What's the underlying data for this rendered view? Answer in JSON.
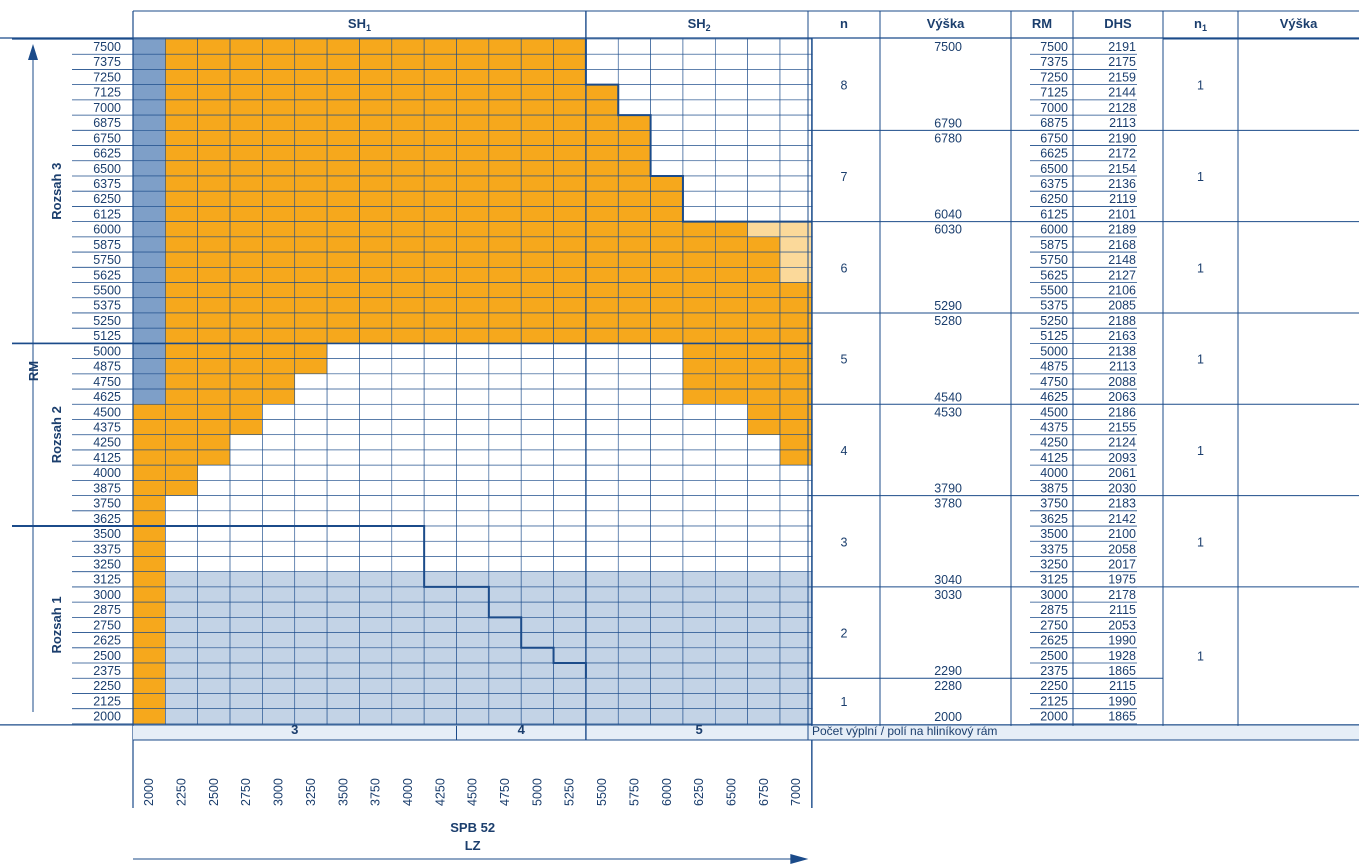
{
  "colors": {
    "orange": "#f6a81c",
    "light_orange": "#fbd99a",
    "blue": "#7e9fc8",
    "light_blue": "#c3d3e6",
    "line": "#1b4b8a",
    "grid": "#1b4b8a",
    "band": "#e6eef7"
  },
  "header": {
    "sh1_main": "SH",
    "sh1_sub": "1",
    "sh2_main": "SH",
    "sh2_sub": "2",
    "n": "n",
    "vyska": "Výška",
    "rm": "RM",
    "dhs": "DHS",
    "n1_main": "n",
    "n1_sub": "1",
    "vyska2": "Výška"
  },
  "axis": {
    "y_title": "RM",
    "x_title": "LZ",
    "x_subtitle": "SPB 52",
    "range_labels": [
      "Rozsah 3",
      "Rozsah 2",
      "Rozsah 1"
    ]
  },
  "footer": {
    "panel_counts": [
      "3",
      "4",
      "5"
    ],
    "note": "Počet výplní / polí na hliníkový rám"
  },
  "chart_data": {
    "type": "heatmap",
    "x": [
      2000,
      2250,
      2500,
      2750,
      3000,
      3250,
      3500,
      3750,
      4000,
      4250,
      4500,
      4750,
      5000,
      5250,
      5500,
      5750,
      6000,
      6250,
      6500,
      6750,
      7000
    ],
    "y": [
      7500,
      7375,
      7250,
      7125,
      7000,
      6875,
      6750,
      6625,
      6500,
      6375,
      6250,
      6125,
      6000,
      5875,
      5750,
      5625,
      5500,
      5375,
      5250,
      5125,
      5000,
      4875,
      4750,
      4625,
      4500,
      4375,
      4250,
      4125,
      4000,
      3875,
      3750,
      3625,
      3500,
      3375,
      3250,
      3125,
      3000,
      2875,
      2750,
      2625,
      2500,
      2375,
      2250,
      2125,
      2000
    ],
    "cell_fill_codes": [
      "B=blue",
      "O=orange",
      "L=light orange",
      "S=light blue",
      "W=white"
    ],
    "cells": [
      "BOOOOOOOOOOOOOWWWWWWW",
      "BOOOOOOOOOOOOOWWWWWWW",
      "BOOOOOOOOOOOOOWWWWWWW",
      "BOOOOOOOOOOOOOOWWWWWW",
      "BOOOOOOOOOOOOOOWWWWWW",
      "BOOOOOOOOOOOOOOOWWWWW",
      "BOOOOOOOOOOOOOOOWWWWW",
      "BOOOOOOOOOOOOOOOWWWWW",
      "BOOOOOOOOOOOOOOOWWWWW",
      "BOOOOOOOOOOOOOOOOWWWW",
      "BOOOOOOOOOOOOOOOOWWWW",
      "BOOOOOOOOOOOOOOOOWWWW",
      "BOOOOOOOOOOOOOOOOOOLL",
      "BOOOOOOOOOOOOOOOOOOOL",
      "BOOOOOOOOOOOOOOOOOOOL",
      "BOOOOOOOOOOOOOOOOOOOL",
      "BOOOOOOOOOOOOOOOOOOOO",
      "BOOOOOOOOOOOOOOOOOOOO",
      "BOOOOOOOOOOOOOOOOOOOO",
      "BOOOOOOOOOOOOOOOOOOOO",
      "BOOOOOWWWWWWWWWWWOOOO",
      "BOOOOOWWWWWWWWWWWOOOO",
      "BOOOOWWWWWWWWWWWWOOOO",
      "BOOOOWWWWWWWWWWWWOOOO",
      "OOOOWWWWWWWWWWWWWWWOO",
      "OOOOWWWWWWWWWWWWWWWOO",
      "OOOWWWWWWWWWWWWWWWWWO",
      "OOOWWWWWWWWWWWWWWWWWO",
      "OOWWWWWWWWWWWWWWWWWWW",
      "OOWWWWWWWWWWWWWWWWWWW",
      "OWWWWWWWWWWWWWWWWWWWW",
      "OWWWWWWWWWWWWWWWWWWWW",
      "OWWWWWWWWWWWWWWWWWWWW",
      "OWWWWWWWWWWWWWWWWWWWW",
      "OWWWWWWWWWWWWWWWWWWWW",
      "OSSSSSSSSSSSSSSSSSSSS",
      "OSSSSSSSSSSSSSSSSSSSS",
      "OSSSSSSSSSSSSSSSSSSSS",
      "OSSSSSSSSSSSSSSSSSSSS",
      "OSSSSSSSSSSSSSSSSSSSS",
      "OSSSSSSSSSSSSSSSSSSSS",
      "OSSSSSSSSSSSSSSSSSSSS",
      "OSSSSSSSSSSSSSSSSSSSS",
      "OSSSSSSSSSSSSSSSSSSSS",
      "OSSSSSSSSSSSSSSSSSSSS"
    ],
    "boundaries": {
      "sh1_limit": [
        [
          2000,
          5250
        ],
        [
          2000,
          5250
        ],
        [
          2000,
          5250
        ],
        [
          2000,
          5500
        ],
        [
          2000,
          5500
        ]
      ],
      "stair_3500": 3500
    },
    "table": {
      "groups": [
        {
          "n": "8",
          "vyska_top": "7500",
          "vyska_bottom": "6790",
          "n1": "1",
          "rows": [
            [
              "7500",
              "2191"
            ],
            [
              "7375",
              "2175"
            ],
            [
              "7250",
              "2159"
            ],
            [
              "7125",
              "2144"
            ],
            [
              "7000",
              "2128"
            ],
            [
              "6875",
              "2113"
            ]
          ]
        },
        {
          "n": "7",
          "vyska_top": "6780",
          "vyska_bottom": "6040",
          "n1": "1",
          "rows": [
            [
              "6750",
              "2190"
            ],
            [
              "6625",
              "2172"
            ],
            [
              "6500",
              "2154"
            ],
            [
              "6375",
              "2136"
            ],
            [
              "6250",
              "2119"
            ],
            [
              "6125",
              "2101"
            ]
          ]
        },
        {
          "n": "6",
          "vyska_top": "6030",
          "vyska_bottom": "5290",
          "n1": "1",
          "rows": [
            [
              "6000",
              "2189"
            ],
            [
              "5875",
              "2168"
            ],
            [
              "5750",
              "2148"
            ],
            [
              "5625",
              "2127"
            ],
            [
              "5500",
              "2106"
            ],
            [
              "5375",
              "2085"
            ]
          ]
        },
        {
          "n": "5",
          "vyska_top": "5280",
          "vyska_bottom": "4540",
          "n1": "1",
          "rows": [
            [
              "5250",
              "2188"
            ],
            [
              "5125",
              "2163"
            ],
            [
              "5000",
              "2138"
            ],
            [
              "4875",
              "2113"
            ],
            [
              "4750",
              "2088"
            ],
            [
              "4625",
              "2063"
            ]
          ]
        },
        {
          "n": "4",
          "vyska_top": "4530",
          "vyska_bottom": "3790",
          "n1": "1",
          "rows": [
            [
              "4500",
              "2186"
            ],
            [
              "4375",
              "2155"
            ],
            [
              "4250",
              "2124"
            ],
            [
              "4125",
              "2093"
            ],
            [
              "4000",
              "2061"
            ],
            [
              "3875",
              "2030"
            ]
          ]
        },
        {
          "n": "3",
          "vyska_top": "3780",
          "vyska_bottom": "3040",
          "n1": "1",
          "rows": [
            [
              "3750",
              "2183"
            ],
            [
              "3625",
              "2142"
            ],
            [
              "3500",
              "2100"
            ],
            [
              "3375",
              "2058"
            ],
            [
              "3250",
              "2017"
            ],
            [
              "3125",
              "1975"
            ]
          ]
        },
        {
          "n": "2",
          "vyska_top": "3030",
          "vyska_bottom": "2290",
          "n1": "",
          "rows": [
            [
              "3000",
              "2178"
            ],
            [
              "2875",
              "2115"
            ],
            [
              "2750",
              "2053"
            ],
            [
              "2625",
              "1990"
            ],
            [
              "2500",
              "1928"
            ],
            [
              "2375",
              "1865"
            ]
          ]
        },
        {
          "n": "1",
          "vyska_top": "2280",
          "vyska_bottom": "2000",
          "n1": "",
          "rows": [
            [
              "2250",
              "2115"
            ],
            [
              "2125",
              "1990"
            ],
            [
              "2000",
              "1865"
            ]
          ]
        }
      ],
      "n1_rozsah1": "1"
    }
  }
}
